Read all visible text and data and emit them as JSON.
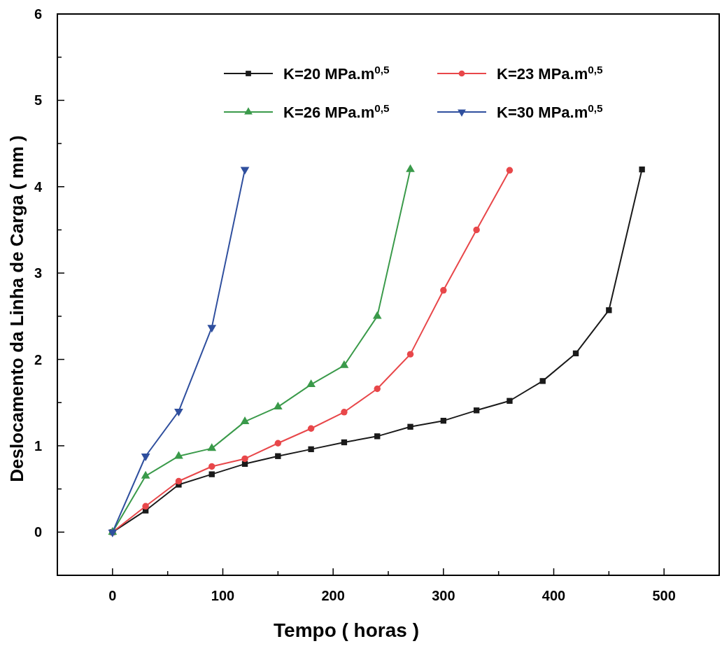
{
  "chart_data": {
    "type": "line",
    "xlabel": "Tempo ( horas )",
    "ylabel": "Deslocamento da Linha de Carga ( mm )",
    "xlim": [
      -50,
      550
    ],
    "xticks": [
      0,
      {
        "value": 50,
        "label": null
      },
      100,
      {
        "value": 150,
        "label": null
      },
      200,
      {
        "value": 250,
        "label": null
      },
      300,
      {
        "value": 350,
        "label": null
      },
      400,
      {
        "value": 450,
        "label": null
      },
      500
    ],
    "ylim": [
      -0.5,
      6
    ],
    "yticks": [
      0,
      {
        "value": 0.5,
        "label": null
      },
      1,
      {
        "value": 1.5,
        "label": null
      },
      2,
      {
        "value": 2.5,
        "label": null
      },
      3,
      {
        "value": 3.5,
        "label": null
      },
      4,
      {
        "value": 4.5,
        "label": null
      },
      5,
      {
        "value": 5.5,
        "label": null
      },
      6
    ],
    "grid": false,
    "legend": "top right",
    "series": [
      {
        "name": "K=20 MPa.m$^{0,5}$",
        "color": "#1a1a1a",
        "marker": "square",
        "x": [
          0,
          30,
          60,
          90,
          120,
          150,
          180,
          210,
          240,
          270,
          300,
          330,
          360,
          390,
          420,
          450,
          480
        ],
        "values": [
          0,
          0.25,
          0.55,
          0.67,
          0.79,
          0.88,
          0.96,
          1.04,
          1.11,
          1.22,
          1.29,
          1.41,
          1.52,
          1.75,
          2.07,
          2.57,
          4.2
        ]
      },
      {
        "name": "K=23 MPa.m$^{0,5}$",
        "color": "#e8474a",
        "marker": "circle",
        "x": [
          0,
          30,
          60,
          90,
          120,
          150,
          180,
          210,
          240,
          270,
          300,
          330,
          360
        ],
        "values": [
          0,
          0.3,
          0.59,
          0.76,
          0.85,
          1.03,
          1.2,
          1.39,
          1.66,
          2.06,
          2.8,
          3.5,
          4.19
        ]
      },
      {
        "name": "K=26 MPa.m$^{0,5}$",
        "color": "#3a9a4a",
        "marker": "triangle",
        "x": [
          0,
          30,
          60,
          90,
          120,
          150,
          180,
          210,
          240,
          270
        ],
        "values": [
          0,
          0.65,
          0.88,
          0.97,
          1.28,
          1.45,
          1.71,
          1.93,
          2.5,
          4.2
        ]
      },
      {
        "name": "K=30 MPa.m$^{0,5}$",
        "color": "#2f4f9e",
        "marker": "triangle-down",
        "x": [
          0,
          30,
          60,
          90,
          120
        ],
        "values": [
          0,
          0.88,
          1.4,
          2.37,
          4.2
        ]
      }
    ]
  }
}
